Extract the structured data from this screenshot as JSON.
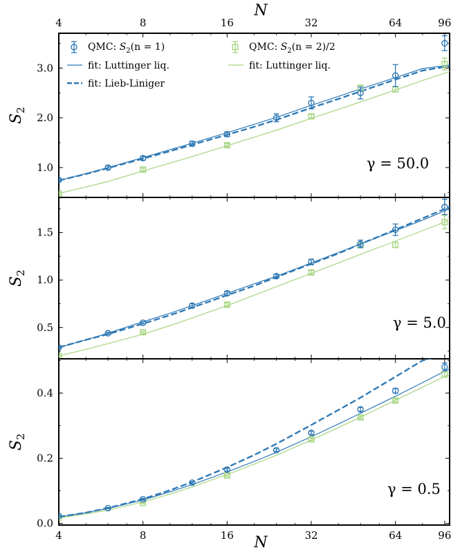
{
  "chart_data": {
    "type": "scatter",
    "x_scale": "log2",
    "x_ticks": [
      4,
      8,
      16,
      32,
      64,
      96
    ],
    "x_tick_labels": [
      "4",
      "8",
      "16",
      "32",
      "64",
      "96"
    ],
    "xlim": [
      4,
      100
    ],
    "xlabel_top": "N",
    "xlabel_bottom": "N",
    "ylabel": "S",
    "ylabel_sub": "2",
    "legend": {
      "placement": "top-left of top panel",
      "entries": [
        {
          "key": "qmc1",
          "marker": "circle-errorbar",
          "color": "#2f79b5",
          "prefix": "QMC: ",
          "math_main": "S",
          "math_sub": "2",
          "math_rest": "(n = 1)"
        },
        {
          "key": "qmc2",
          "marker": "square-errorbar",
          "color": "#a6d581",
          "prefix": "QMC: ",
          "math_main": "S",
          "math_sub": "2",
          "math_rest": "(n = 2)/2"
        },
        {
          "key": "lutt1",
          "marker": "solid-line",
          "color": "#2f79b5",
          "text": "fit: Luttinger liq."
        },
        {
          "key": "lutt2",
          "marker": "solid-line",
          "color": "#a6d581",
          "text": "fit: Luttinger liq."
        },
        {
          "key": "lieb",
          "marker": "dashed-line",
          "color": "#2f79b5",
          "text": "fit: Lieb-Liniger"
        }
      ]
    },
    "colors": {
      "blue": "#2f79b5",
      "green": "#a6d581"
    },
    "panels": [
      {
        "gamma_label": "γ = 50.0",
        "ylim": [
          0.4,
          3.7
        ],
        "y_ticks": [
          1.0,
          2.0,
          3.0
        ],
        "y_tick_labels": [
          "1.0",
          "2.0",
          "3.0"
        ],
        "qmc_n1": {
          "x": [
            4,
            6,
            8,
            12,
            16,
            24,
            32,
            48,
            64,
            96
          ],
          "y": [
            0.75,
            1.0,
            1.19,
            1.48,
            1.67,
            2.0,
            2.3,
            2.5,
            2.85,
            3.5
          ],
          "err": [
            0.03,
            0.03,
            0.04,
            0.05,
            0.05,
            0.08,
            0.12,
            0.12,
            0.22,
            0.15
          ]
        },
        "qmc_n2": {
          "x": [
            4,
            8,
            16,
            32,
            48,
            64,
            96
          ],
          "y": [
            0.48,
            0.96,
            1.45,
            2.03,
            2.6,
            2.57,
            3.08
          ],
          "err": [
            0.02,
            0.03,
            0.03,
            0.04,
            0.06,
            0.05,
            0.12
          ]
        },
        "fit_lutt_n1": {
          "x": [
            4,
            5,
            6,
            8,
            10,
            12,
            16,
            20,
            24,
            32,
            40,
            48,
            64,
            80,
            100
          ],
          "y": [
            0.74,
            0.88,
            1.0,
            1.2,
            1.36,
            1.49,
            1.7,
            1.87,
            2.01,
            2.25,
            2.43,
            2.58,
            2.81,
            2.99,
            3.06
          ]
        },
        "fit_lutt_n2": {
          "x": [
            4,
            5,
            6,
            8,
            10,
            12,
            16,
            20,
            24,
            32,
            40,
            48,
            64,
            80,
            100
          ],
          "y": [
            0.48,
            0.61,
            0.72,
            0.93,
            1.09,
            1.22,
            1.44,
            1.61,
            1.75,
            1.99,
            2.17,
            2.32,
            2.56,
            2.75,
            2.93
          ]
        },
        "fit_lieb": {
          "x": [
            4,
            5,
            6,
            8,
            10,
            12,
            16,
            20,
            24,
            32,
            40,
            48,
            64,
            80,
            100
          ],
          "y": [
            0.74,
            0.87,
            0.99,
            1.18,
            1.33,
            1.46,
            1.66,
            1.82,
            1.96,
            2.2,
            2.38,
            2.53,
            2.77,
            2.95,
            3.04
          ]
        }
      },
      {
        "gamma_label": "γ = 5.0",
        "ylim": [
          0.17,
          1.87
        ],
        "y_ticks": [
          0.5,
          1.0,
          1.5
        ],
        "y_tick_labels": [
          "0.5",
          "1.0",
          "1.5"
        ],
        "qmc_n1": {
          "x": [
            4,
            6,
            8,
            12,
            16,
            24,
            32,
            48,
            64,
            96
          ],
          "y": [
            0.29,
            0.44,
            0.55,
            0.73,
            0.86,
            1.04,
            1.19,
            1.38,
            1.53,
            1.77
          ],
          "err": [
            0.01,
            0.01,
            0.01,
            0.02,
            0.02,
            0.02,
            0.03,
            0.04,
            0.06,
            0.08
          ]
        },
        "qmc_n2": {
          "x": [
            4,
            8,
            16,
            32,
            48,
            64,
            96
          ],
          "y": [
            0.2,
            0.45,
            0.74,
            1.08,
            1.37,
            1.37,
            1.61
          ],
          "err": [
            0.01,
            0.01,
            0.02,
            0.02,
            0.03,
            0.03,
            0.07
          ]
        },
        "fit_lutt_n1": {
          "x": [
            4,
            5,
            6,
            8,
            10,
            12,
            16,
            20,
            24,
            32,
            40,
            48,
            64,
            80,
            100
          ],
          "y": [
            0.29,
            0.37,
            0.44,
            0.56,
            0.65,
            0.73,
            0.86,
            0.96,
            1.04,
            1.18,
            1.29,
            1.38,
            1.52,
            1.63,
            1.75
          ]
        },
        "fit_lutt_n2": {
          "x": [
            4,
            5,
            6,
            8,
            10,
            12,
            16,
            20,
            24,
            32,
            40,
            48,
            64,
            80,
            100
          ],
          "y": [
            0.2,
            0.27,
            0.33,
            0.43,
            0.52,
            0.6,
            0.73,
            0.84,
            0.93,
            1.07,
            1.18,
            1.27,
            1.41,
            1.52,
            1.63
          ]
        },
        "fit_lieb": {
          "x": [
            4,
            5,
            6,
            8,
            10,
            12,
            16,
            20,
            24,
            32,
            40,
            48,
            64,
            80,
            100
          ],
          "y": [
            0.29,
            0.37,
            0.43,
            0.54,
            0.63,
            0.71,
            0.84,
            0.94,
            1.03,
            1.17,
            1.28,
            1.38,
            1.53,
            1.65,
            1.77
          ]
        }
      },
      {
        "gamma_label": "γ = 0.5",
        "ylim": [
          -0.005,
          0.505
        ],
        "y_ticks": [
          0.0,
          0.2,
          0.4
        ],
        "y_tick_labels": [
          "0.0",
          "0.2",
          "0.4"
        ],
        "qmc_n1": {
          "x": [
            4,
            6,
            8,
            12,
            16,
            24,
            32,
            48,
            64,
            96
          ],
          "y": [
            0.023,
            0.047,
            0.074,
            0.125,
            0.165,
            0.225,
            0.278,
            0.35,
            0.407,
            0.48
          ],
          "err": [
            0.002,
            0.002,
            0.003,
            0.003,
            0.004,
            0.004,
            0.005,
            0.006,
            0.007,
            0.012
          ]
        },
        "qmc_n2": {
          "x": [
            4,
            8,
            16,
            32,
            48,
            64,
            96
          ],
          "y": [
            0.018,
            0.063,
            0.147,
            0.258,
            0.325,
            0.377,
            0.457
          ],
          "err": [
            0.002,
            0.002,
            0.003,
            0.004,
            0.004,
            0.005,
            0.008
          ]
        },
        "fit_lutt_n1": {
          "x": [
            4,
            5,
            6,
            8,
            10,
            12,
            16,
            20,
            24,
            32,
            40,
            48,
            64,
            80,
            100
          ],
          "y": [
            0.02,
            0.033,
            0.046,
            0.072,
            0.097,
            0.119,
            0.158,
            0.19,
            0.218,
            0.266,
            0.305,
            0.338,
            0.39,
            0.432,
            0.475
          ]
        },
        "fit_lutt_n2": {
          "x": [
            4,
            5,
            6,
            8,
            10,
            12,
            16,
            20,
            24,
            32,
            40,
            48,
            64,
            80,
            100
          ],
          "y": [
            0.017,
            0.029,
            0.041,
            0.066,
            0.09,
            0.112,
            0.15,
            0.182,
            0.209,
            0.256,
            0.294,
            0.326,
            0.378,
            0.418,
            0.458
          ]
        },
        "fit_lieb": {
          "x": [
            4,
            5,
            6,
            8,
            10,
            12,
            16,
            20,
            24,
            32,
            40,
            48,
            64,
            80,
            100
          ],
          "y": [
            0.02,
            0.033,
            0.047,
            0.075,
            0.102,
            0.127,
            0.172,
            0.21,
            0.244,
            0.302,
            0.348,
            0.386,
            0.45,
            0.5,
            0.52
          ]
        }
      }
    ]
  }
}
